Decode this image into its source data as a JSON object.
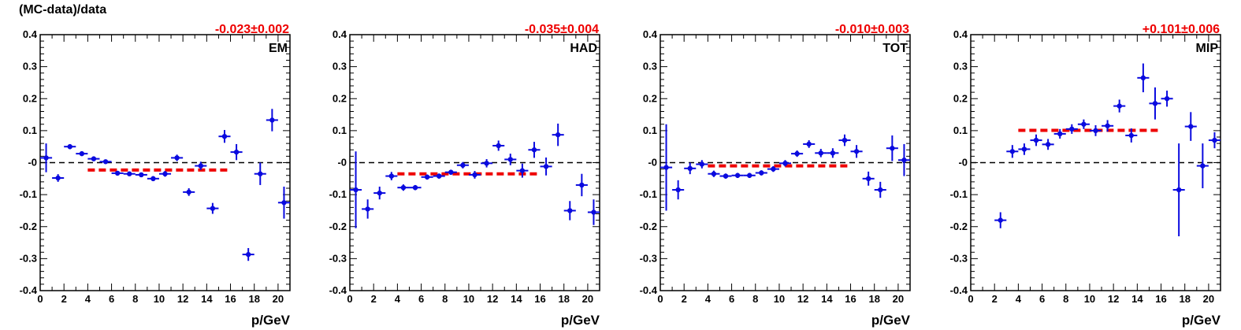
{
  "figure": {
    "ylabel": "(MC-data)/data"
  },
  "chart_data": [
    {
      "type": "scatter",
      "label": "EM",
      "fit_text": "-0.023±0.002",
      "xlabel": "p/GeV",
      "xlim": [
        0,
        21
      ],
      "ylim": [
        -0.4,
        0.4
      ],
      "x_ticks": [
        "0",
        "2",
        "4",
        "6",
        "8",
        "10",
        "12",
        "14",
        "16",
        "18",
        "20"
      ],
      "y_ticks": [
        "-0.4",
        "-0.3",
        "-0.2",
        "-0.1",
        "-0",
        "0.1",
        "0.2",
        "0.3",
        "0.4"
      ],
      "zero_line": 0,
      "fit": {
        "value": -0.023,
        "x_range": [
          4,
          16
        ]
      },
      "points": [
        {
          "x": 0.5,
          "y": 0.015,
          "err": 0.045
        },
        {
          "x": 1.5,
          "y": -0.048,
          "err": 0.012
        },
        {
          "x": 2.5,
          "y": 0.05,
          "err": 0.008
        },
        {
          "x": 3.5,
          "y": 0.028,
          "err": 0.007
        },
        {
          "x": 4.5,
          "y": 0.012,
          "err": 0.006
        },
        {
          "x": 5.5,
          "y": 0.003,
          "err": 0.006
        },
        {
          "x": 6.5,
          "y": -0.033,
          "err": 0.006
        },
        {
          "x": 7.5,
          "y": -0.035,
          "err": 0.006
        },
        {
          "x": 8.5,
          "y": -0.038,
          "err": 0.007
        },
        {
          "x": 9.5,
          "y": -0.05,
          "err": 0.008
        },
        {
          "x": 10.5,
          "y": -0.035,
          "err": 0.009
        },
        {
          "x": 11.5,
          "y": 0.015,
          "err": 0.01
        },
        {
          "x": 12.5,
          "y": -0.092,
          "err": 0.012
        },
        {
          "x": 13.5,
          "y": -0.01,
          "err": 0.013
        },
        {
          "x": 14.5,
          "y": -0.143,
          "err": 0.017
        },
        {
          "x": 15.5,
          "y": 0.082,
          "err": 0.02
        },
        {
          "x": 16.5,
          "y": 0.033,
          "err": 0.025
        },
        {
          "x": 17.5,
          "y": -0.287,
          "err": 0.02
        },
        {
          "x": 18.5,
          "y": -0.035,
          "err": 0.035
        },
        {
          "x": 19.5,
          "y": 0.133,
          "err": 0.035
        },
        {
          "x": 20.5,
          "y": -0.125,
          "err": 0.05
        }
      ]
    },
    {
      "type": "scatter",
      "label": "HAD",
      "fit_text": "-0.035±0.004",
      "xlabel": "p/GeV",
      "xlim": [
        0,
        21
      ],
      "ylim": [
        -0.4,
        0.4
      ],
      "x_ticks": [
        "0",
        "2",
        "4",
        "6",
        "8",
        "10",
        "12",
        "14",
        "16",
        "18",
        "20"
      ],
      "y_ticks": [
        "-0.4",
        "-0.3",
        "-0.2",
        "-0.1",
        "-0",
        "0.1",
        "0.2",
        "0.3",
        "0.4"
      ],
      "zero_line": 0,
      "fit": {
        "value": -0.035,
        "x_range": [
          4,
          16
        ]
      },
      "points": [
        {
          "x": 0.5,
          "y": -0.085,
          "err": 0.12
        },
        {
          "x": 1.5,
          "y": -0.145,
          "err": 0.03
        },
        {
          "x": 2.5,
          "y": -0.095,
          "err": 0.02
        },
        {
          "x": 3.5,
          "y": -0.042,
          "err": 0.013
        },
        {
          "x": 4.5,
          "y": -0.078,
          "err": 0.01
        },
        {
          "x": 5.5,
          "y": -0.078,
          "err": 0.008
        },
        {
          "x": 6.5,
          "y": -0.045,
          "err": 0.008
        },
        {
          "x": 7.5,
          "y": -0.042,
          "err": 0.008
        },
        {
          "x": 8.5,
          "y": -0.03,
          "err": 0.008
        },
        {
          "x": 9.5,
          "y": -0.008,
          "err": 0.01
        },
        {
          "x": 10.5,
          "y": -0.038,
          "err": 0.012
        },
        {
          "x": 11.5,
          "y": -0.002,
          "err": 0.013
        },
        {
          "x": 12.5,
          "y": 0.053,
          "err": 0.016
        },
        {
          "x": 13.5,
          "y": 0.01,
          "err": 0.018
        },
        {
          "x": 14.5,
          "y": -0.025,
          "err": 0.022
        },
        {
          "x": 15.5,
          "y": 0.04,
          "err": 0.025
        },
        {
          "x": 16.5,
          "y": -0.012,
          "err": 0.028
        },
        {
          "x": 17.5,
          "y": 0.087,
          "err": 0.035
        },
        {
          "x": 18.5,
          "y": -0.15,
          "err": 0.03
        },
        {
          "x": 19.5,
          "y": -0.07,
          "err": 0.035
        },
        {
          "x": 20.5,
          "y": -0.155,
          "err": 0.04
        }
      ]
    },
    {
      "type": "scatter",
      "label": "TOT",
      "fit_text": "-0.010±0.003",
      "xlabel": "p/GeV",
      "xlim": [
        0,
        21
      ],
      "ylim": [
        -0.4,
        0.4
      ],
      "x_ticks": [
        "0",
        "2",
        "4",
        "6",
        "8",
        "10",
        "12",
        "14",
        "16",
        "18",
        "20"
      ],
      "y_ticks": [
        "-0.4",
        "-0.3",
        "-0.2",
        "-0.1",
        "-0",
        "0.1",
        "0.2",
        "0.3",
        "0.4"
      ],
      "zero_line": 0,
      "fit": {
        "value": -0.01,
        "x_range": [
          4,
          16
        ]
      },
      "points": [
        {
          "x": 0.5,
          "y": -0.015,
          "err": 0.135
        },
        {
          "x": 1.5,
          "y": -0.085,
          "err": 0.03
        },
        {
          "x": 2.5,
          "y": -0.018,
          "err": 0.018
        },
        {
          "x": 3.5,
          "y": -0.005,
          "err": 0.013
        },
        {
          "x": 4.5,
          "y": -0.035,
          "err": 0.01
        },
        {
          "x": 5.5,
          "y": -0.042,
          "err": 0.008
        },
        {
          "x": 6.5,
          "y": -0.04,
          "err": 0.008
        },
        {
          "x": 7.5,
          "y": -0.04,
          "err": 0.008
        },
        {
          "x": 8.5,
          "y": -0.032,
          "err": 0.008
        },
        {
          "x": 9.5,
          "y": -0.02,
          "err": 0.009
        },
        {
          "x": 10.5,
          "y": -0.002,
          "err": 0.01
        },
        {
          "x": 11.5,
          "y": 0.028,
          "err": 0.01
        },
        {
          "x": 12.5,
          "y": 0.058,
          "err": 0.012
        },
        {
          "x": 13.5,
          "y": 0.03,
          "err": 0.013
        },
        {
          "x": 14.5,
          "y": 0.03,
          "err": 0.015
        },
        {
          "x": 15.5,
          "y": 0.07,
          "err": 0.018
        },
        {
          "x": 16.5,
          "y": 0.035,
          "err": 0.02
        },
        {
          "x": 17.5,
          "y": -0.05,
          "err": 0.022
        },
        {
          "x": 18.5,
          "y": -0.085,
          "err": 0.025
        },
        {
          "x": 19.5,
          "y": 0.045,
          "err": 0.04
        },
        {
          "x": 20.5,
          "y": 0.008,
          "err": 0.05
        }
      ]
    },
    {
      "type": "scatter",
      "label": "MIP",
      "fit_text": "+0.101±0.006",
      "xlabel": "p/GeV",
      "xlim": [
        0,
        21
      ],
      "ylim": [
        -0.4,
        0.4
      ],
      "x_ticks": [
        "0",
        "2",
        "4",
        "6",
        "8",
        "10",
        "12",
        "14",
        "16",
        "18",
        "20"
      ],
      "y_ticks": [
        "-0.4",
        "-0.3",
        "-0.2",
        "-0.1",
        "-0",
        "0.1",
        "0.2",
        "0.3",
        "0.4"
      ],
      "zero_line": 0,
      "fit": {
        "value": 0.101,
        "x_range": [
          4,
          16
        ]
      },
      "points": [
        {
          "x": 2.5,
          "y": -0.18,
          "err": 0.025
        },
        {
          "x": 3.5,
          "y": 0.035,
          "err": 0.02
        },
        {
          "x": 4.5,
          "y": 0.042,
          "err": 0.018
        },
        {
          "x": 5.5,
          "y": 0.07,
          "err": 0.018
        },
        {
          "x": 6.5,
          "y": 0.057,
          "err": 0.017
        },
        {
          "x": 7.5,
          "y": 0.09,
          "err": 0.015
        },
        {
          "x": 8.5,
          "y": 0.105,
          "err": 0.015
        },
        {
          "x": 9.5,
          "y": 0.12,
          "err": 0.015
        },
        {
          "x": 10.5,
          "y": 0.1,
          "err": 0.017
        },
        {
          "x": 11.5,
          "y": 0.115,
          "err": 0.018
        },
        {
          "x": 12.5,
          "y": 0.177,
          "err": 0.02
        },
        {
          "x": 13.5,
          "y": 0.085,
          "err": 0.022
        },
        {
          "x": 14.5,
          "y": 0.265,
          "err": 0.045
        },
        {
          "x": 15.5,
          "y": 0.185,
          "err": 0.05
        },
        {
          "x": 16.5,
          "y": 0.2,
          "err": 0.025
        },
        {
          "x": 17.5,
          "y": -0.085,
          "err": 0.145
        },
        {
          "x": 18.5,
          "y": 0.113,
          "err": 0.045
        },
        {
          "x": 19.5,
          "y": -0.01,
          "err": 0.07
        },
        {
          "x": 20.5,
          "y": 0.07,
          "err": 0.025
        }
      ]
    }
  ]
}
